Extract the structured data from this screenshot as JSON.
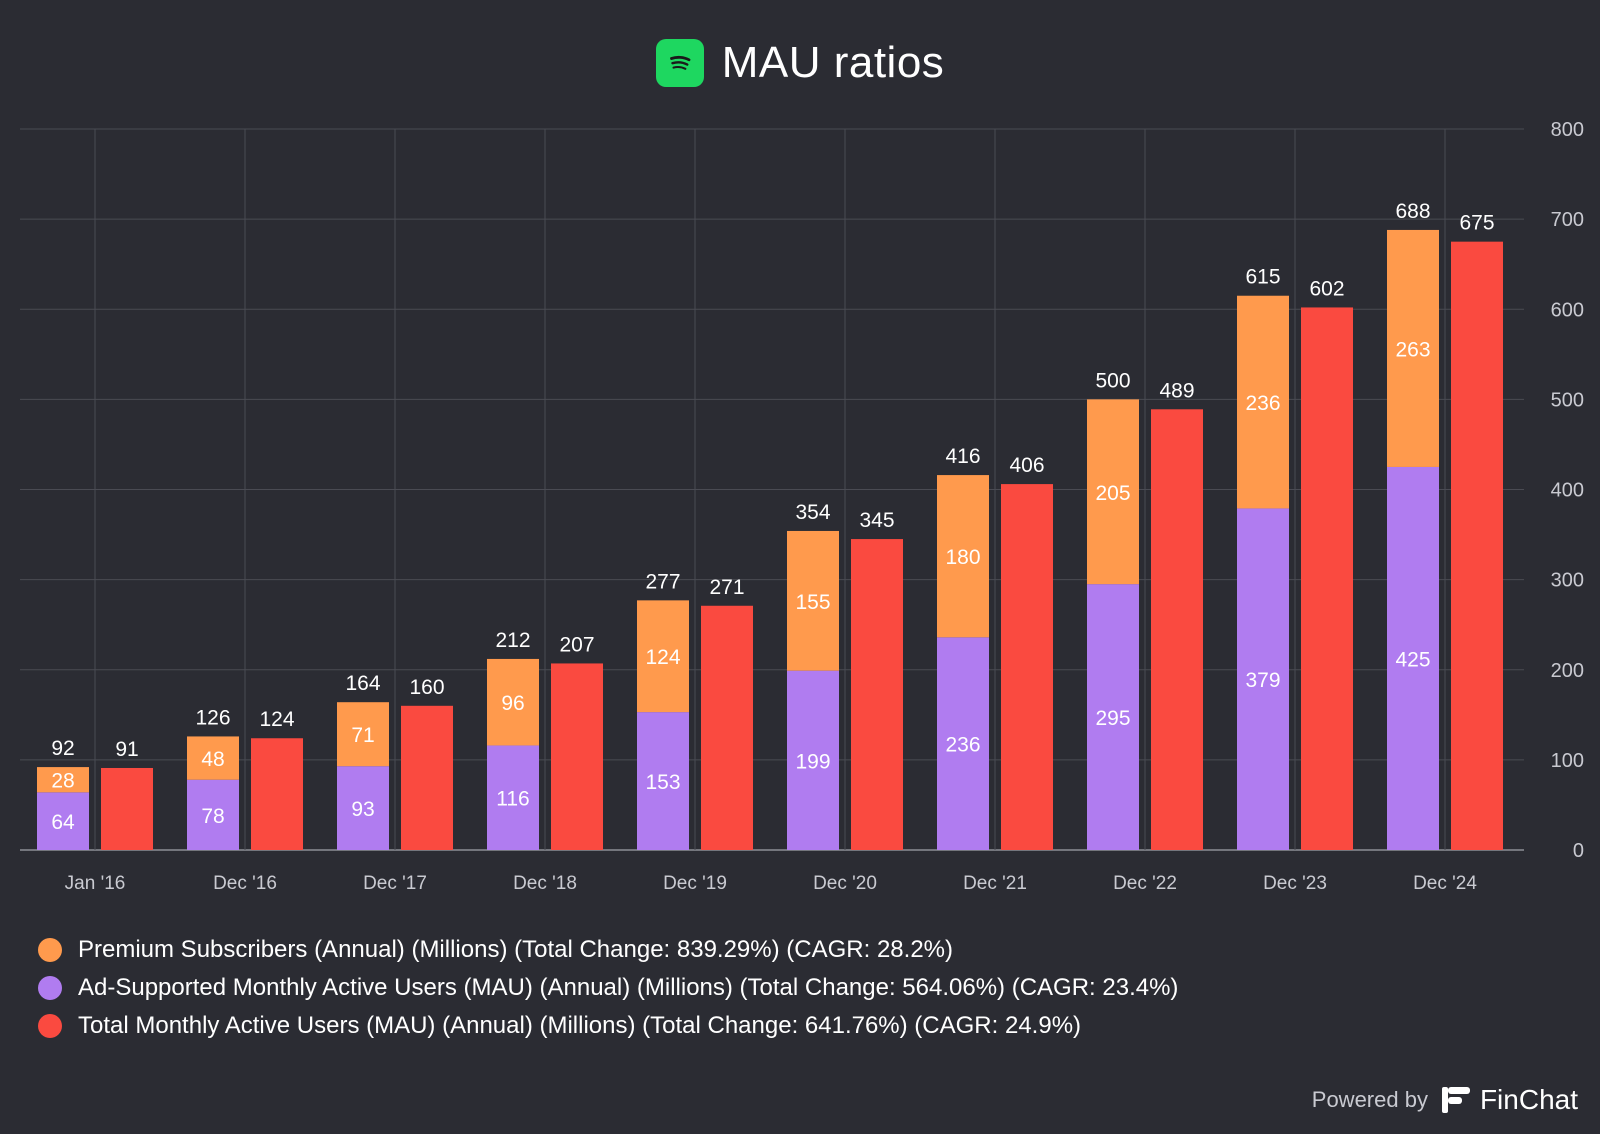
{
  "title": "MAU ratios",
  "chart_data": {
    "type": "bar",
    "categories": [
      "Jan '16",
      "Dec '16",
      "Dec '17",
      "Dec '18",
      "Dec '19",
      "Dec '20",
      "Dec '21",
      "Dec '22",
      "Dec '23",
      "Dec '24"
    ],
    "series": [
      {
        "name": "Ad-Supported Monthly Active Users (MAU) (Annual) (Millions) (Total Change: 564.06%) (CAGR: 23.4%)",
        "color": "#b07cf0",
        "stack": "combined",
        "values": [
          64,
          78,
          93,
          116,
          153,
          199,
          236,
          295,
          379,
          425
        ]
      },
      {
        "name": "Premium Subscribers (Annual) (Millions) (Total Change: 839.29%) (CAGR: 28.2%)",
        "color": "#ff9a4d",
        "stack": "combined",
        "values": [
          28,
          48,
          71,
          96,
          124,
          155,
          180,
          205,
          236,
          263
        ]
      },
      {
        "name": "Total Monthly Active Users (MAU) (Annual) (Millions) (Total Change: 641.76%) (CAGR: 24.9%)",
        "color": "#fa4a40",
        "stack": "total",
        "values": [
          91,
          124,
          160,
          207,
          271,
          345,
          406,
          489,
          602,
          675
        ]
      }
    ],
    "stack_totals": [
      92,
      126,
      164,
      212,
      277,
      354,
      416,
      500,
      615,
      688
    ],
    "y_ticks": [
      0,
      100,
      200,
      300,
      400,
      500,
      600,
      700,
      800
    ],
    "ylim": [
      0,
      800
    ],
    "y_axis_side": "right",
    "grid": true,
    "legend_position": "bottom-left",
    "legend_order": [
      1,
      0,
      2
    ]
  },
  "footer": {
    "powered_by": "Powered by",
    "brand": "FinChat"
  },
  "colors": {
    "background": "#2b2c33",
    "grid": "#4a4b53",
    "axis_text": "#c9cad1",
    "spotify_green": "#1ed760"
  },
  "icons": {
    "title_logo": "spotify-logo-icon",
    "brand_logo": "finchat-logo-icon"
  }
}
